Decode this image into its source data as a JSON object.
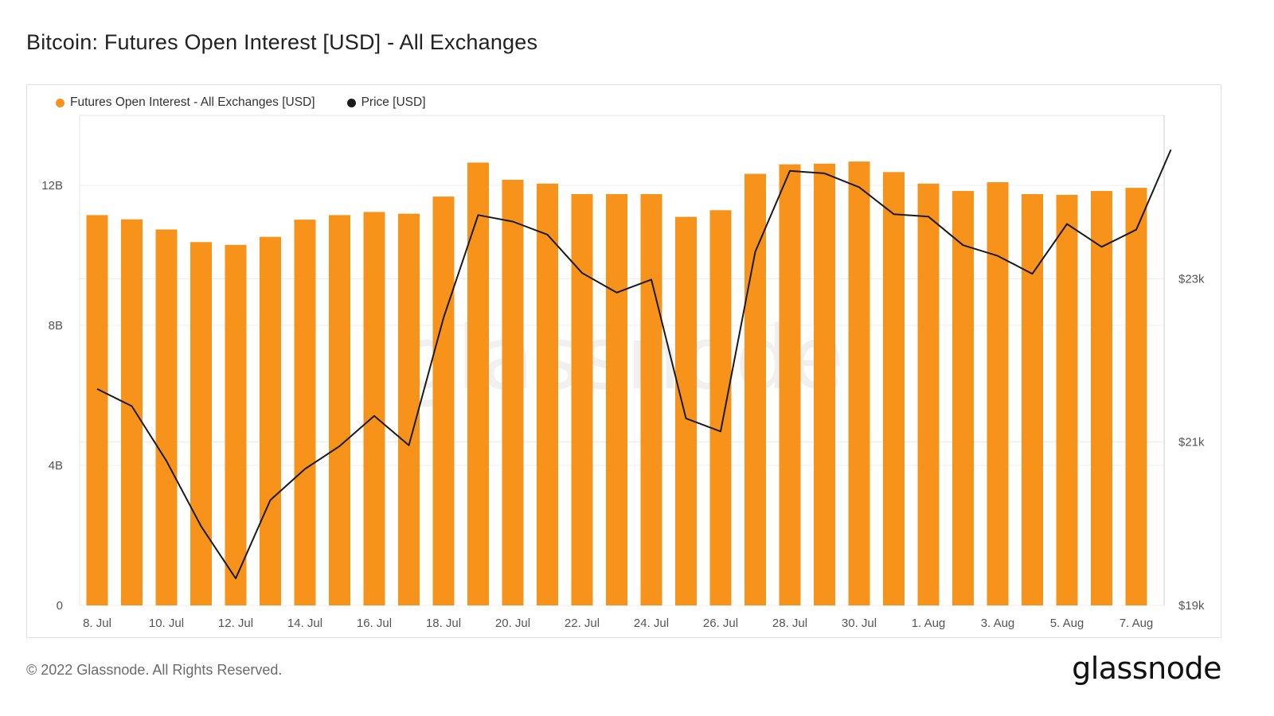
{
  "title": "Bitcoin: Futures Open Interest [USD] - All Exchanges",
  "footer": "© 2022 Glassnode. All Rights Reserved.",
  "brand": "glassnode",
  "watermark": "glassnode",
  "colors": {
    "bar": "#f7931a",
    "line": "#1a1a1a",
    "grid": "#ececec"
  },
  "chart_data": {
    "type": "bar",
    "legend": {
      "placement": "top-left",
      "entries": [
        "Futures Open Interest - All Exchanges [USD]",
        "Price [USD]"
      ]
    },
    "grid": true,
    "dates": [
      "8. Jul",
      "9. Jul",
      "10. Jul",
      "11. Jul",
      "12. Jul",
      "13. Jul",
      "14. Jul",
      "15. Jul",
      "16. Jul",
      "17. Jul",
      "18. Jul",
      "19. Jul",
      "20. Jul",
      "21. Jul",
      "22. Jul",
      "23. Jul",
      "24. Jul",
      "25. Jul",
      "26. Jul",
      "27. Jul",
      "28. Jul",
      "29. Jul",
      "30. Jul",
      "31. Jul",
      "1. Aug",
      "2. Aug",
      "3. Aug",
      "4. Aug",
      "5. Aug",
      "6. Aug",
      "7. Aug",
      "8. Aug"
    ],
    "x_tick_labels": [
      "8. Jul",
      "10. Jul",
      "12. Jul",
      "14. Jul",
      "16. Jul",
      "18. Jul",
      "20. Jul",
      "22. Jul",
      "24. Jul",
      "26. Jul",
      "28. Jul",
      "30. Jul",
      "1. Aug",
      "3. Aug",
      "5. Aug",
      "7. Aug"
    ],
    "series": [
      {
        "name": "Futures Open Interest - All Exchanges [USD]",
        "type": "bar",
        "axis": "left",
        "values": [
          11150000000.0,
          11030000000.0,
          10740000000.0,
          10380000000.0,
          10300000000.0,
          10530000000.0,
          11020000000.0,
          11150000000.0,
          11240000000.0,
          11190000000.0,
          11680000000.0,
          12650000000.0,
          12160000000.0,
          12050000000.0,
          11750000000.0,
          11750000000.0,
          11750000000.0,
          11100000000.0,
          11290000000.0,
          12330000000.0,
          12600000000.0,
          12620000000.0,
          12680000000.0,
          12380000000.0,
          12050000000.0,
          11840000000.0,
          12090000000.0,
          11750000000.0,
          11730000000.0,
          11840000000.0,
          11930000000.0,
          null
        ],
        "point_labels": [
          "8. Jul",
          "9. Jul",
          "10. Jul",
          "11. Jul",
          "12. Jul",
          "13. Jul",
          "14. Jul",
          "15. Jul",
          "16. Jul",
          "17. Jul",
          "18. Jul",
          "19. Jul",
          "20. Jul",
          "21. Jul",
          "22. Jul",
          "23. Jul",
          "24. Jul",
          "25. Jul",
          "26. Jul",
          "27. Jul",
          "28. Jul",
          "29. Jul",
          "30. Jul",
          "31. Jul",
          "1. Aug",
          "2. Aug",
          "3. Aug",
          "4. Aug",
          "5. Aug",
          "6. Aug",
          "7. Aug",
          "8. Aug"
        ]
      },
      {
        "name": "Price [USD]",
        "type": "line",
        "axis": "right",
        "values": [
          21650,
          21440,
          20770,
          19970,
          19330,
          20290,
          20670,
          20950,
          21320,
          20960,
          22520,
          23780,
          23700,
          23540,
          23070,
          22830,
          22990,
          21290,
          21130,
          23330,
          24320,
          24290,
          24120,
          23790,
          23760,
          23410,
          23280,
          23060,
          23670,
          23390,
          23600,
          24580
        ]
      }
    ],
    "y_left": {
      "ticks": [
        0,
        4000000000.0,
        8000000000.0,
        12000000000.0
      ],
      "tick_labels": [
        "0",
        "4B",
        "8B",
        "12B"
      ],
      "range": [
        0,
        14000000000.0
      ]
    },
    "y_right": {
      "ticks": [
        19000,
        21000,
        23000
      ],
      "tick_labels": [
        "$19k",
        "$21k",
        "$23k"
      ],
      "range": [
        19000,
        25000
      ]
    }
  }
}
